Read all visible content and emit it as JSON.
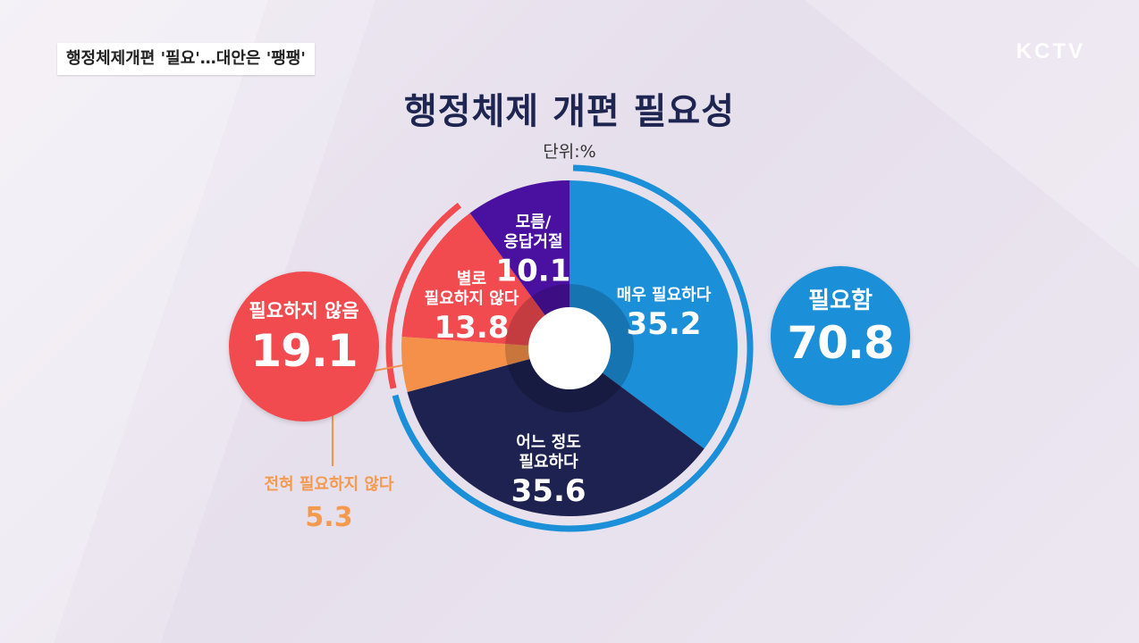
{
  "headline": "행정체제개편 '필요'…대안은 '팽팽'",
  "logo": "KCTV",
  "chart_data": {
    "type": "pie",
    "title": "행정체제 개편 필요성",
    "unit": "단위:%",
    "slices": [
      {
        "label_lines": [
          "매우 필요하다"
        ],
        "value": 35.2,
        "color": "#1b8fd8"
      },
      {
        "label_lines": [
          "어느 정도",
          "필요하다"
        ],
        "value": 35.6,
        "color": "#1e2250"
      },
      {
        "label_lines": [
          "전혀 필요하지 않다"
        ],
        "value": 5.3,
        "color": "#f5904a"
      },
      {
        "label_lines": [
          "별로",
          "필요하지 않다"
        ],
        "value": 13.8,
        "color": "#f14a4f"
      },
      {
        "label_lines": [
          "모름/",
          "응답거절"
        ],
        "value": 10.1,
        "color": "#4a11a0"
      }
    ],
    "groups": [
      {
        "label": "필요함",
        "value": 70.8,
        "color": "#1b8fd8"
      },
      {
        "label": "필요하지 않음",
        "value": 19.1,
        "color": "#f14a4f"
      }
    ]
  },
  "colors": {
    "title": "#1e2551",
    "outside_label": "#f39a4f"
  }
}
